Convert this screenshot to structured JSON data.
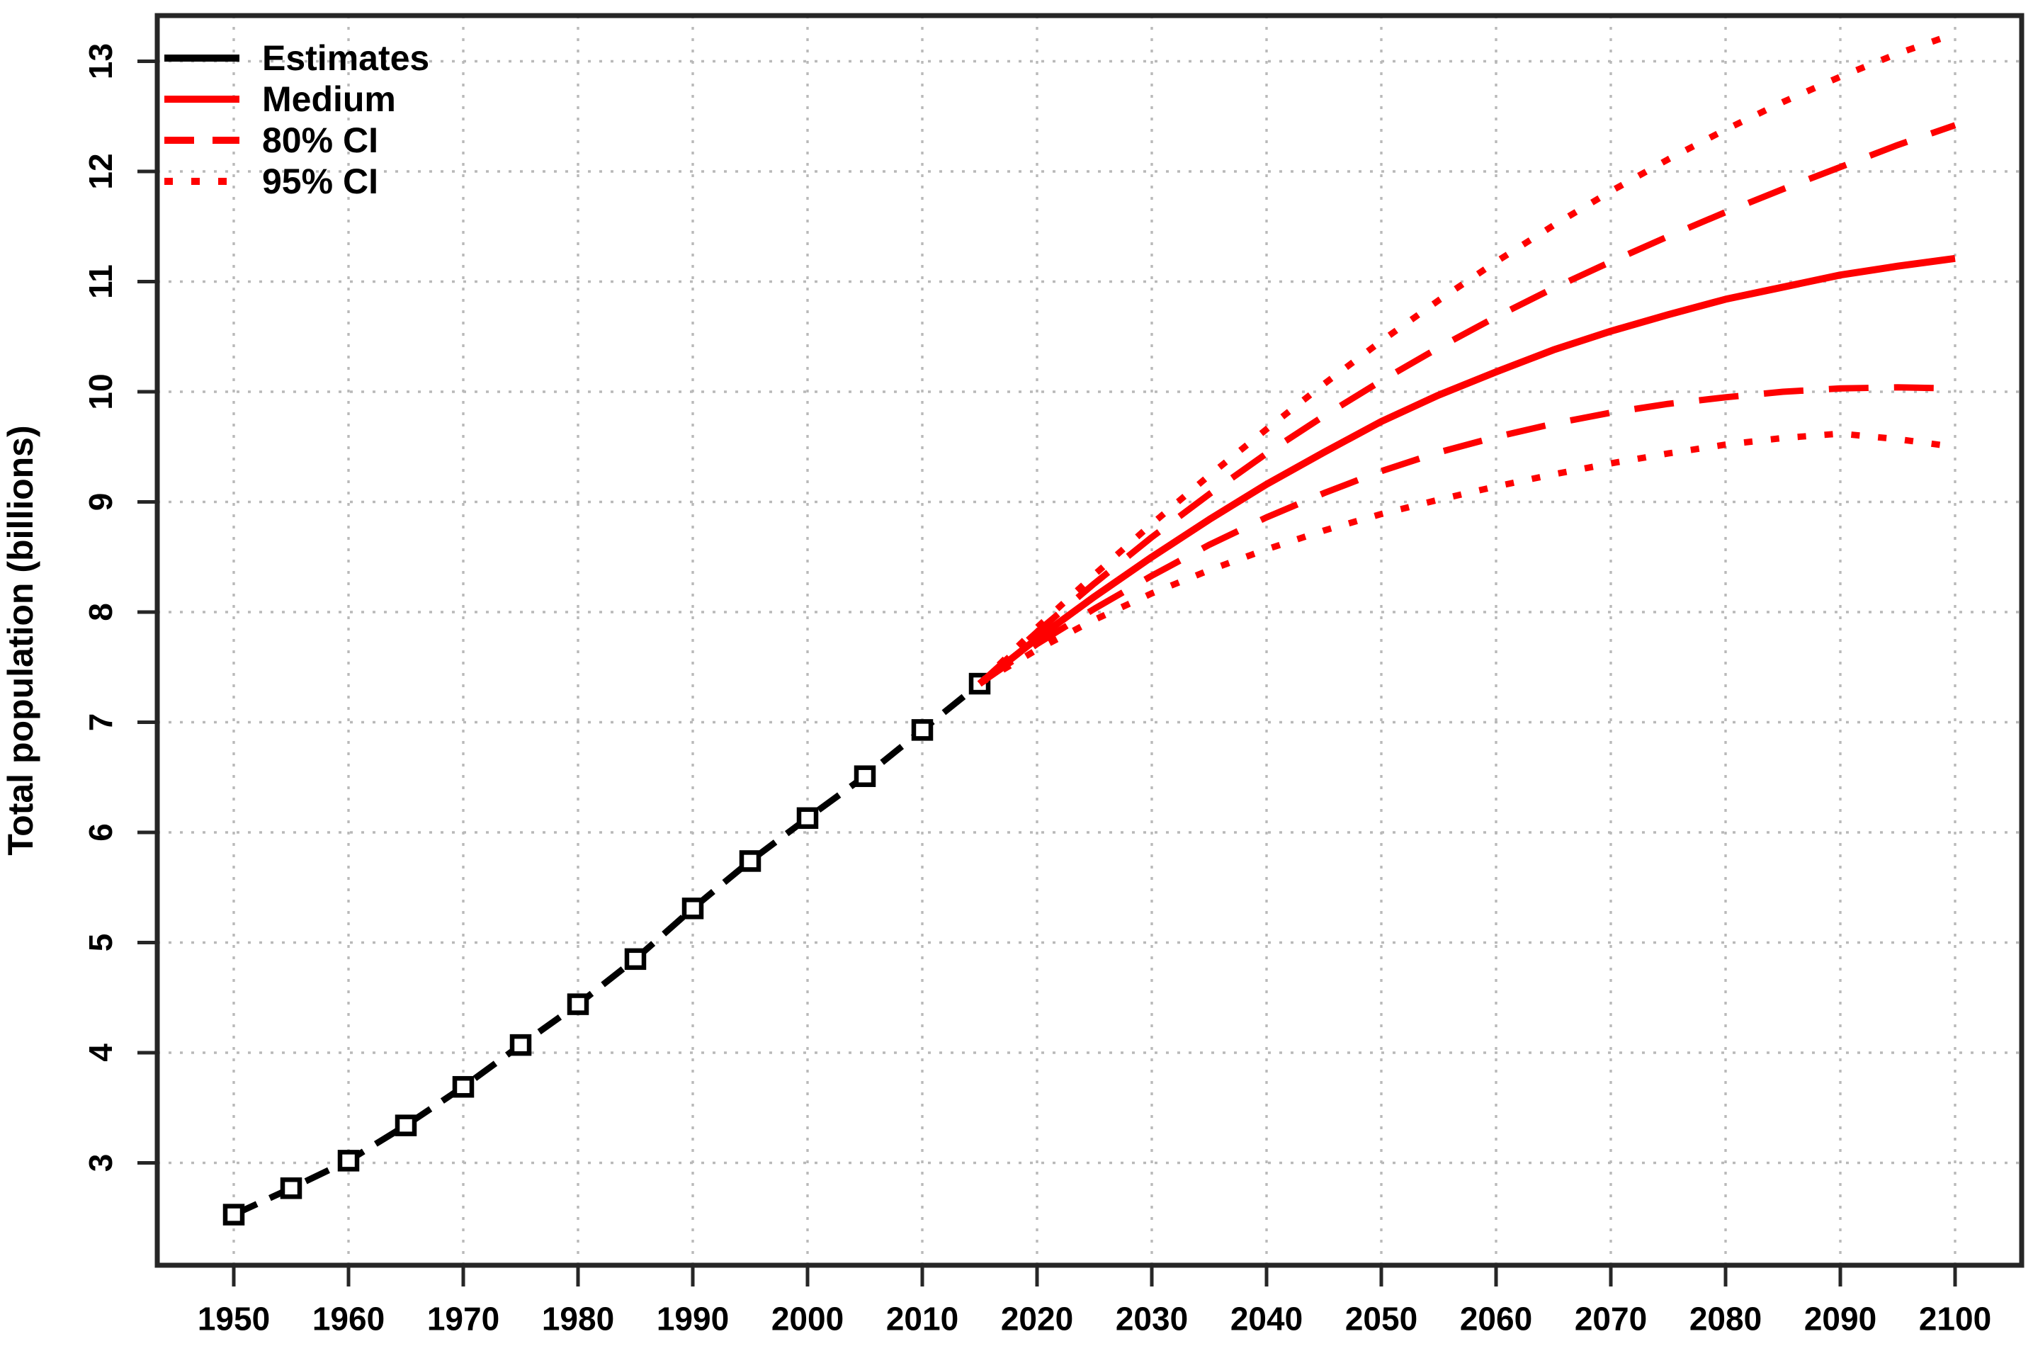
{
  "figure": {
    "background": "#ffffff"
  },
  "colors": {
    "estimates": "#000000",
    "projection_red": "#fe0000",
    "grid": "#b9b9b9",
    "axis": "#262626",
    "text": "#000000"
  },
  "legend": {
    "items": [
      {
        "label": "Estimates",
        "color": "#000000",
        "linestyle": "solid"
      },
      {
        "label": "Medium",
        "color": "#fe0000",
        "linestyle": "solid"
      },
      {
        "label": "80% CI",
        "color": "#fe0000",
        "linestyle": "dashed"
      },
      {
        "label": "95% CI",
        "color": "#fe0000",
        "linestyle": "dotted"
      }
    ]
  },
  "chart_data": {
    "type": "line",
    "title": "",
    "xlabel": "",
    "ylabel": "Total population (billions)",
    "x_ticks": [
      1950,
      1960,
      1970,
      1980,
      1990,
      2000,
      2010,
      2020,
      2030,
      2040,
      2050,
      2060,
      2070,
      2080,
      2090,
      2100
    ],
    "y_ticks": [
      3,
      4,
      5,
      6,
      7,
      8,
      9,
      10,
      11,
      12,
      13
    ],
    "xlim": [
      1943,
      2106
    ],
    "ylim": [
      2.1,
      13.4
    ],
    "grid": true,
    "grid_style": "dotted",
    "legend_position": "top-left",
    "series": [
      {
        "name": "Estimates",
        "color": "#000000",
        "linestyle": "dashed",
        "marker": "open-square",
        "x": [
          1950,
          1955,
          1960,
          1965,
          1970,
          1975,
          1980,
          1985,
          1990,
          1995,
          2000,
          2005,
          2010,
          2015
        ],
        "values": [
          2.53,
          2.77,
          3.02,
          3.34,
          3.69,
          4.07,
          4.44,
          4.85,
          5.31,
          5.74,
          6.13,
          6.51,
          6.93,
          7.35
        ]
      },
      {
        "name": "Medium",
        "color": "#fe0000",
        "linestyle": "solid",
        "x": [
          2015,
          2020,
          2025,
          2030,
          2035,
          2040,
          2045,
          2050,
          2055,
          2060,
          2065,
          2070,
          2075,
          2080,
          2085,
          2090,
          2095,
          2100
        ],
        "values": [
          7.35,
          7.76,
          8.14,
          8.5,
          8.84,
          9.16,
          9.45,
          9.73,
          9.97,
          10.18,
          10.38,
          10.55,
          10.7,
          10.84,
          10.95,
          11.06,
          11.14,
          11.21
        ]
      },
      {
        "name": "80% CI upper",
        "color": "#fe0000",
        "linestyle": "dashed",
        "x": [
          2015,
          2020,
          2025,
          2030,
          2035,
          2040,
          2045,
          2050,
          2055,
          2060,
          2065,
          2070,
          2075,
          2080,
          2085,
          2090,
          2095,
          2100
        ],
        "values": [
          7.35,
          7.82,
          8.26,
          8.68,
          9.07,
          9.44,
          9.78,
          10.1,
          10.4,
          10.68,
          10.94,
          11.18,
          11.41,
          11.63,
          11.84,
          12.04,
          12.24,
          12.42
        ]
      },
      {
        "name": "80% CI lower",
        "color": "#fe0000",
        "linestyle": "dashed",
        "x": [
          2015,
          2020,
          2025,
          2030,
          2035,
          2040,
          2045,
          2050,
          2055,
          2060,
          2065,
          2070,
          2075,
          2080,
          2085,
          2090,
          2095,
          2100
        ],
        "values": [
          7.35,
          7.71,
          8.03,
          8.33,
          8.61,
          8.86,
          9.08,
          9.28,
          9.45,
          9.59,
          9.71,
          9.81,
          9.89,
          9.95,
          10.0,
          10.03,
          10.04,
          10.03
        ]
      },
      {
        "name": "95% CI upper",
        "color": "#fe0000",
        "linestyle": "dotted",
        "x": [
          2015,
          2020,
          2025,
          2030,
          2035,
          2040,
          2045,
          2050,
          2055,
          2060,
          2065,
          2070,
          2075,
          2080,
          2085,
          2090,
          2095,
          2100
        ],
        "values": [
          7.35,
          7.86,
          8.34,
          8.8,
          9.24,
          9.66,
          10.07,
          10.46,
          10.83,
          11.18,
          11.51,
          11.82,
          12.11,
          12.38,
          12.63,
          12.86,
          13.07,
          13.25
        ]
      },
      {
        "name": "95% CI lower",
        "color": "#fe0000",
        "linestyle": "dotted",
        "x": [
          2015,
          2020,
          2025,
          2030,
          2035,
          2040,
          2045,
          2050,
          2055,
          2060,
          2065,
          2070,
          2075,
          2080,
          2085,
          2090,
          2095,
          2100
        ],
        "values": [
          7.35,
          7.66,
          7.93,
          8.17,
          8.38,
          8.57,
          8.74,
          8.89,
          9.02,
          9.14,
          9.25,
          9.35,
          9.44,
          9.52,
          9.58,
          9.62,
          9.57,
          9.5
        ]
      }
    ]
  }
}
